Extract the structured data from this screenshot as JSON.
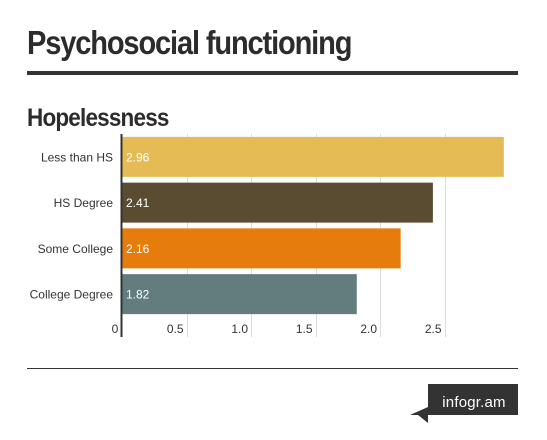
{
  "header": {
    "title": "Psychosocial functioning"
  },
  "brand": {
    "label": "infogr.am",
    "color": "#333333"
  },
  "chart_data": {
    "type": "bar",
    "orientation": "horizontal",
    "title": "Hopelessness",
    "categories": [
      "Less than HS",
      "HS Degree",
      "Some College",
      "College Degree"
    ],
    "values": [
      2.96,
      2.41,
      2.16,
      1.82
    ],
    "value_labels": [
      "2.96",
      "2.41",
      "2.16",
      "1.82"
    ],
    "colors": [
      "#e5bb56",
      "#5a4c30",
      "#e67c0b",
      "#637d7f"
    ],
    "xlim": [
      0,
      3.0
    ],
    "x_ticks": [
      0,
      0.5,
      1.0,
      1.5,
      2.0,
      2.5
    ],
    "x_tick_labels": [
      "0",
      "0.5",
      "1.0",
      "1.5",
      "2.0",
      "2.5"
    ],
    "grid": true,
    "xlabel": "",
    "ylabel": ""
  }
}
